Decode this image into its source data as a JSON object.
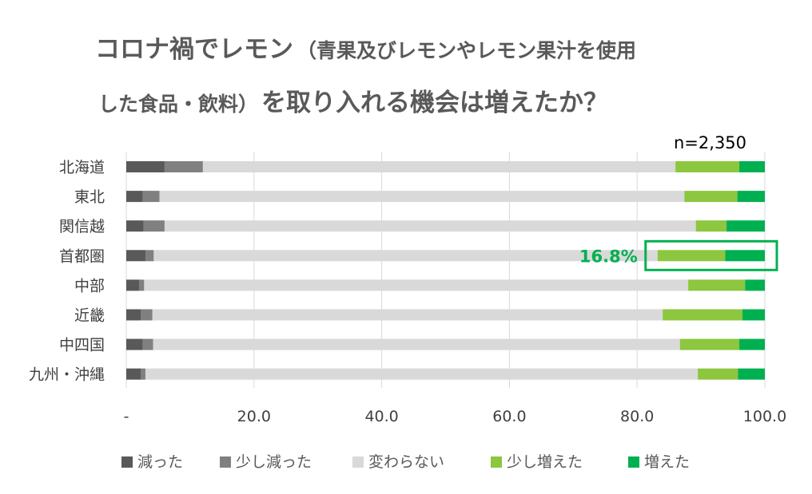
{
  "chart_data": {
    "type": "bar",
    "orientation": "horizontal",
    "stacked": true,
    "title_line1_main": "コロナ禍でレモン",
    "title_line1_sub": "（青果及びレモンやレモン果汁を使用",
    "title_line2_sub": "した食品・飲料）",
    "title_line2_main": "を取り入れる機会は増えたか？",
    "sample_size": "n=2,350",
    "categories": [
      "北海道",
      "東北",
      "関信越",
      "首都圏",
      "中部",
      "近畿",
      "中四国",
      "九州・沖縄"
    ],
    "series": [
      {
        "name": "減った",
        "color": "#595959",
        "values": [
          6.0,
          2.6,
          2.7,
          3.0,
          2.0,
          2.3,
          2.6,
          2.3
        ]
      },
      {
        "name": "少し減った",
        "color": "#808080",
        "values": [
          6.0,
          2.6,
          3.3,
          1.3,
          0.8,
          1.8,
          1.6,
          0.7
        ]
      },
      {
        "name": "変わらない",
        "color": "#d9d9d9",
        "values": [
          74.0,
          82.2,
          83.2,
          78.9,
          85.2,
          79.9,
          82.5,
          86.5
        ]
      },
      {
        "name": "少し増えた",
        "color": "#8dc63f",
        "values": [
          10.0,
          8.3,
          4.8,
          10.6,
          8.9,
          12.5,
          9.3,
          6.3
        ]
      },
      {
        "name": "増えた",
        "color": "#00b050",
        "values": [
          4.0,
          4.3,
          6.0,
          6.2,
          3.1,
          3.5,
          4.0,
          4.2
        ]
      }
    ],
    "xlim": [
      0,
      100
    ],
    "xticks": [
      "-",
      "20.0",
      "40.0",
      "60.0",
      "80.0",
      "100.0"
    ],
    "grid": "vertical",
    "legend_position": "bottom",
    "annotation": {
      "text": "16.8%",
      "category": "首都圏",
      "highlight_color": "#00b050"
    }
  }
}
